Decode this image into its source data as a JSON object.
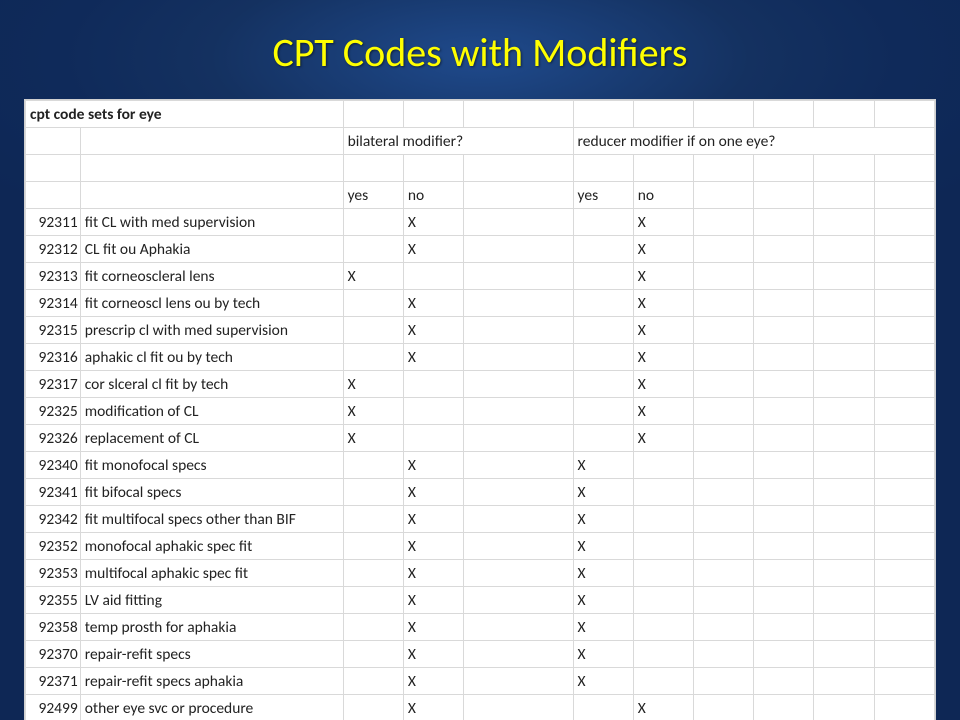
{
  "title": "CPT Codes with Modifiers",
  "colors": {
    "title_color": "#ffff00",
    "background_top": "#1f4a8c",
    "background_bottom": "#0f2a5a",
    "table_bg": "#ffffff",
    "grid": "#d9d9d9",
    "text": "#222222"
  },
  "table": {
    "header_label": "cpt code sets for eye",
    "group1_label": "bilateral modifier?",
    "group2_label": "reducer modifier if on one eye?",
    "yes_label": "yes",
    "no_label": "no",
    "columns": [
      "code",
      "description",
      "bilat_yes",
      "bilat_no",
      "spacer",
      "red_yes",
      "red_no",
      "c7",
      "c8",
      "c9",
      "c10"
    ],
    "rows": [
      {
        "code": "92311",
        "desc": "fit CL with med supervision",
        "by": "",
        "bn": "X",
        "ry": "",
        "rn": "X"
      },
      {
        "code": "92312",
        "desc": "CL fit ou Aphakia",
        "by": "",
        "bn": "X",
        "ry": "",
        "rn": "X"
      },
      {
        "code": "92313",
        "desc": "fit corneoscleral lens",
        "by": "X",
        "bn": "",
        "ry": "",
        "rn": "X"
      },
      {
        "code": "92314",
        "desc": "fit corneoscl lens ou by tech",
        "by": "",
        "bn": "X",
        "ry": "",
        "rn": "X"
      },
      {
        "code": "92315",
        "desc": "prescrip cl with med supervision",
        "by": "",
        "bn": "X",
        "ry": "",
        "rn": "X"
      },
      {
        "code": "92316",
        "desc": "aphakic cl fit ou by tech",
        "by": "",
        "bn": "X",
        "ry": "",
        "rn": "X"
      },
      {
        "code": "92317",
        "desc": "cor slceral cl fit by tech",
        "by": "X",
        "bn": "",
        "ry": "",
        "rn": "X"
      },
      {
        "code": "92325",
        "desc": "modification of CL",
        "by": "X",
        "bn": "",
        "ry": "",
        "rn": "X"
      },
      {
        "code": "92326",
        "desc": "replacement of CL",
        "by": "X",
        "bn": "",
        "ry": "",
        "rn": "X"
      },
      {
        "code": "92340",
        "desc": "fit monofocal specs",
        "by": "",
        "bn": "X",
        "ry": "X",
        "rn": ""
      },
      {
        "code": "92341",
        "desc": "fit bifocal specs",
        "by": "",
        "bn": "X",
        "ry": "X",
        "rn": ""
      },
      {
        "code": "92342",
        "desc": "fit multifocal specs other than BIF",
        "by": "",
        "bn": "X",
        "ry": "X",
        "rn": ""
      },
      {
        "code": "92352",
        "desc": "monofocal aphakic spec fit",
        "by": "",
        "bn": "X",
        "ry": "X",
        "rn": ""
      },
      {
        "code": "92353",
        "desc": "multifocal aphakic spec fit",
        "by": "",
        "bn": "X",
        "ry": "X",
        "rn": ""
      },
      {
        "code": "92355",
        "desc": "LV aid fitting",
        "by": "",
        "bn": "X",
        "ry": "X",
        "rn": ""
      },
      {
        "code": "92358",
        "desc": "temp prosth for aphakia",
        "by": "",
        "bn": "X",
        "ry": "X",
        "rn": ""
      },
      {
        "code": "92370",
        "desc": "repair-refit specs",
        "by": "",
        "bn": "X",
        "ry": "X",
        "rn": ""
      },
      {
        "code": "92371",
        "desc": "repair-refit specs aphakia",
        "by": "",
        "bn": "X",
        "ry": "X",
        "rn": ""
      },
      {
        "code": "92499",
        "desc": "other eye svc or procedure",
        "by": "",
        "bn": "X",
        "ry": "",
        "rn": "X"
      }
    ]
  }
}
